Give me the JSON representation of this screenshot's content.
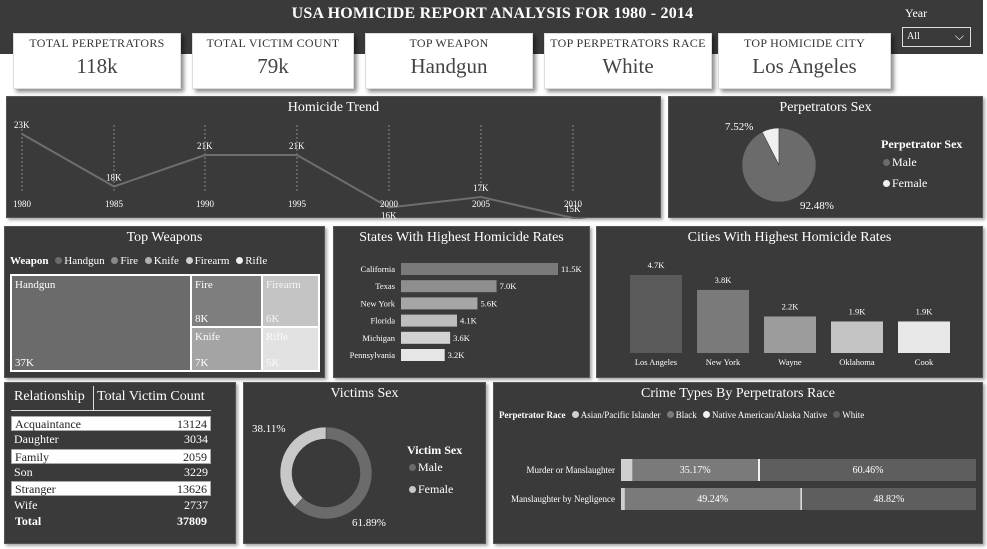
{
  "header": {
    "title": "USA HOMICIDE REPORT ANALYSIS FOR 1980 - 2014",
    "year_label": "Year",
    "year_value": "All"
  },
  "kpis": [
    {
      "label": "TOTAL PERPETRATORS",
      "value": "118k"
    },
    {
      "label": "TOTAL VICTIM COUNT",
      "value": "79k"
    },
    {
      "label": "TOP WEAPON",
      "value": "Handgun"
    },
    {
      "label": "TOP PERPETRATORS RACE",
      "value": "White"
    },
    {
      "label": "TOP HOMICIDE CITY",
      "value": "Los Angeles"
    }
  ],
  "trend": {
    "title": "Homicide Trend",
    "chart_data": {
      "type": "line",
      "x": [
        "1980",
        "1985",
        "1990",
        "1995",
        "2000",
        "2005",
        "2010",
        ""
      ],
      "x_tick_labels": [
        "1980",
        "1985",
        "1990",
        "1995",
        "2000",
        "2005",
        "2010"
      ],
      "values": [
        23,
        18,
        21,
        21,
        16,
        17,
        15,
        14
      ],
      "value_labels": [
        "23K",
        "18K",
        "21K",
        "21K",
        "16K",
        "17K",
        "15K",
        "14K"
      ]
    }
  },
  "perp_sex": {
    "title": "Perpetrators Sex",
    "legend_title": "Perpetrator Sex",
    "chart_data": {
      "type": "pie",
      "labels": [
        "Male",
        "Female"
      ],
      "values": [
        92.48,
        7.52
      ],
      "value_labels": [
        "92.48%",
        "7.52%"
      ],
      "colors": [
        "#6b6b6b",
        "#f0f0f0"
      ]
    }
  },
  "weapons": {
    "title": "Top Weapons",
    "legend_title": "Weapon",
    "legend": [
      "Handgun",
      "Fire",
      "Knife",
      "Firearm",
      "Rifle"
    ],
    "tiles": [
      {
        "name": "Handgun",
        "value": "37K"
      },
      {
        "name": "Fire",
        "value": "8K"
      },
      {
        "name": "Firearm",
        "value": "6K"
      },
      {
        "name": "Knife",
        "value": "7K"
      },
      {
        "name": "Rifle",
        "value": "5K"
      }
    ],
    "chart_data": {
      "type": "treemap",
      "categories": [
        "Handgun",
        "Fire",
        "Firearm",
        "Knife",
        "Rifle"
      ],
      "values": [
        37,
        8,
        6,
        7,
        5
      ]
    }
  },
  "states": {
    "title": "States With Highest Homicide Rates",
    "chart_data": {
      "type": "bar",
      "orientation": "horizontal",
      "categories": [
        "California",
        "Texas",
        "New York",
        "Florida",
        "Michigan",
        "Pennsylvania"
      ],
      "values": [
        11.5,
        7.0,
        5.6,
        4.1,
        3.6,
        3.2
      ],
      "value_labels": [
        "11.5K",
        "7.0K",
        "5.6K",
        "4.1K",
        "3.6K",
        "3.2K"
      ]
    }
  },
  "cities": {
    "title": "Cities With Highest Homicide Rates",
    "chart_data": {
      "type": "bar",
      "categories": [
        "Los Angeles",
        "New York",
        "Wayne",
        "Oklahoma",
        "Cook"
      ],
      "values": [
        4.7,
        3.8,
        2.2,
        1.9,
        1.9
      ],
      "value_labels": [
        "4.7K",
        "3.8K",
        "2.2K",
        "1.9K",
        "1.9K"
      ],
      "colors": [
        "#5a5a5a",
        "#7a7a7a",
        "#9c9c9c",
        "#c4c4c4",
        "#e8e8e8"
      ]
    }
  },
  "relationship": {
    "headers": [
      "Relationship",
      "Total Victim Count"
    ],
    "rows": [
      {
        "name": "Acquaintance",
        "value": "13124"
      },
      {
        "name": "Daughter",
        "value": "3034"
      },
      {
        "name": "Family",
        "value": "2059"
      },
      {
        "name": "Son",
        "value": "3229"
      },
      {
        "name": "Stranger",
        "value": "13626"
      },
      {
        "name": "Wife",
        "value": "2737"
      }
    ],
    "total_label": "Total",
    "total_value": "37809"
  },
  "victim_sex": {
    "title": "Victims Sex",
    "legend_title": "Victim Sex",
    "chart_data": {
      "type": "donut",
      "labels": [
        "Male",
        "Female"
      ],
      "values": [
        61.89,
        38.11
      ],
      "value_labels": [
        "61.89%",
        "38.11%"
      ],
      "colors": [
        "#6b6b6b",
        "#c8c8c8"
      ]
    }
  },
  "crime_types": {
    "title": "Crime Types By Perpetrators Race",
    "legend_title": "Perpetrator Race",
    "legend": [
      "Asian/Pacific Islander",
      "Black",
      "Native American/Alaska Native",
      "White"
    ],
    "chart_data": {
      "type": "bar",
      "stacked": "100%",
      "categories": [
        "Murder or Manslaughter",
        "Manslaughter by Negligence"
      ],
      "series": [
        {
          "name": "Asian/Pacific Islander",
          "values": [
            3.2,
            1.1
          ],
          "labels": [
            "",
            ""
          ]
        },
        {
          "name": "Black",
          "values": [
            35.17,
            49.24
          ],
          "labels": [
            "35.17%",
            "49.24%"
          ]
        },
        {
          "name": "Native American/Alaska Native",
          "values": [
            0.6,
            0.4
          ],
          "labels": [
            "",
            ""
          ]
        },
        {
          "name": "White",
          "values": [
            60.46,
            48.82
          ],
          "labels": [
            "60.46%",
            "48.82%"
          ]
        }
      ],
      "colors": [
        "#cfcfcf",
        "#7a7a7a",
        "#f2f2f2",
        "#5e5e5e"
      ]
    }
  }
}
